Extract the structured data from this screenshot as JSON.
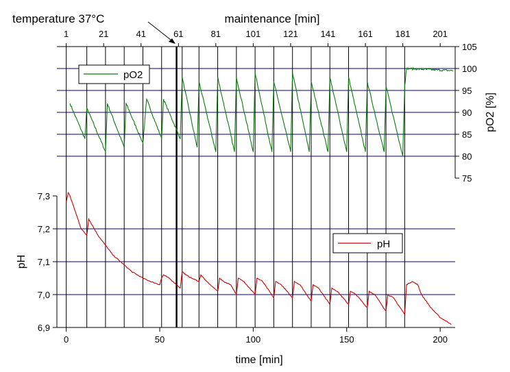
{
  "chart_data": {
    "type": "line",
    "title": "",
    "annotation": "temperature 37°C",
    "colors": {
      "pO2": "#0a7a0a",
      "pH": "#cc0000",
      "grid": "#00007a",
      "axis": "#000000"
    },
    "x_bottom": {
      "label": "time [min]",
      "lim": [
        -5,
        208
      ],
      "ticks": [
        0,
        50,
        100,
        150,
        200
      ],
      "tick_labels": [
        "0",
        "50",
        "100",
        "150",
        "200"
      ]
    },
    "x_top": {
      "label": "maintenance [min]",
      "lim": [
        -4,
        209
      ],
      "ticks": [
        1,
        21,
        41,
        61,
        81,
        101,
        121,
        141,
        161,
        181,
        201
      ],
      "tick_labels": [
        "1",
        "21",
        "41",
        "61",
        "81",
        "101",
        "121",
        "141",
        "161",
        "181",
        "201"
      ]
    },
    "y_right": {
      "label": "pO2 [%]",
      "lim": [
        75,
        105
      ],
      "ticks": [
        75,
        80,
        85,
        90,
        95,
        100,
        105
      ],
      "tick_labels": [
        "75",
        "80",
        "85",
        "90",
        "95",
        "100",
        "105"
      ],
      "grid": [
        80,
        85,
        90,
        95,
        100
      ]
    },
    "y_left": {
      "label": "pH",
      "lim": [
        6.9,
        7.3
      ],
      "ticks": [
        6.9,
        7.0,
        7.1,
        7.2,
        7.3
      ],
      "tick_labels": [
        "6,9",
        "7,0",
        "7,1",
        "7,2",
        "7,3"
      ],
      "grid": [
        7.0,
        7.1,
        7.2
      ]
    },
    "maintenance_lines_time": [
      0,
      11,
      21,
      31,
      41,
      51,
      62,
      71,
      81,
      91,
      101,
      111,
      121,
      131,
      141,
      151,
      161,
      171,
      181
    ],
    "temperature_marker_time": 59,
    "series": [
      {
        "name": "pO2",
        "axis": "right",
        "x": [
          2,
          10,
          11,
          21,
          22,
          31,
          32,
          41,
          43,
          51,
          52,
          60,
          61,
          62,
          70,
          71,
          80,
          81,
          90,
          91,
          100,
          101,
          110,
          111,
          120,
          121,
          130,
          131,
          140,
          141,
          150,
          151,
          160,
          161,
          170,
          171,
          180,
          181,
          182,
          207
        ],
        "y": [
          92,
          84,
          91,
          81,
          92,
          82,
          92,
          83,
          93,
          84,
          93,
          85,
          84,
          98,
          82,
          97,
          81,
          98,
          81,
          98,
          81,
          99,
          81,
          97,
          81,
          99,
          81,
          97,
          81,
          98,
          81,
          98,
          81,
          97,
          81,
          96,
          80,
          96,
          100,
          99.5
        ]
      },
      {
        "name": "pH",
        "axis": "left",
        "x": [
          0,
          1,
          2,
          5,
          8,
          11,
          12,
          14,
          17,
          21,
          25,
          31,
          35,
          41,
          45,
          50,
          51,
          52,
          55,
          57,
          61,
          62,
          64,
          67,
          71,
          72,
          75,
          81,
          82,
          84,
          88,
          91,
          92,
          95,
          101,
          102,
          105,
          111,
          112,
          115,
          121,
          122,
          125,
          131,
          132,
          135,
          141,
          142,
          145,
          151,
          152,
          155,
          161,
          162,
          165,
          171,
          172,
          175,
          181,
          182,
          185,
          188,
          190,
          195,
          200,
          206
        ],
        "y": [
          7.28,
          7.31,
          7.3,
          7.25,
          7.2,
          7.18,
          7.23,
          7.21,
          7.18,
          7.15,
          7.12,
          7.09,
          7.07,
          7.05,
          7.04,
          7.03,
          7.05,
          7.06,
          7.05,
          7.04,
          7.02,
          7.07,
          7.06,
          7.05,
          7.04,
          7.06,
          7.04,
          7.01,
          7.05,
          7.04,
          7.03,
          7.0,
          7.05,
          7.04,
          7.0,
          7.05,
          7.04,
          6.99,
          7.04,
          7.03,
          6.99,
          7.04,
          7.03,
          6.98,
          7.03,
          7.02,
          6.97,
          7.02,
          7.01,
          6.97,
          7.01,
          7.0,
          6.96,
          7.01,
          7.0,
          6.95,
          7.0,
          6.99,
          6.94,
          7.03,
          7.04,
          7.03,
          7.0,
          6.96,
          6.93,
          6.91
        ]
      }
    ],
    "legend": [
      {
        "label": "pO2",
        "series": "pO2",
        "placement": "upper-left"
      },
      {
        "label": "pH",
        "series": "pH",
        "placement": "middle-right"
      }
    ]
  }
}
